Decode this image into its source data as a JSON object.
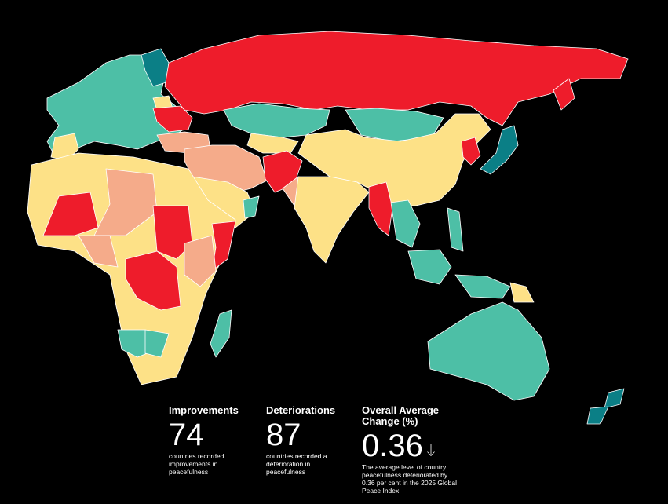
{
  "stats": [
    {
      "title": "Improvements",
      "value": 74,
      "description": "countries recorded improvements in peacefulness"
    },
    {
      "title": "Deteriorations",
      "value": 87,
      "description": "countries recorded a deterioration in peacefulness"
    },
    {
      "title": "Overall Average Change (%)",
      "value": 0.36,
      "description": "The average level of country peacefulness deteriorated by 0.36 per cent in the 2025 Global Peace Index."
    }
  ]
}
